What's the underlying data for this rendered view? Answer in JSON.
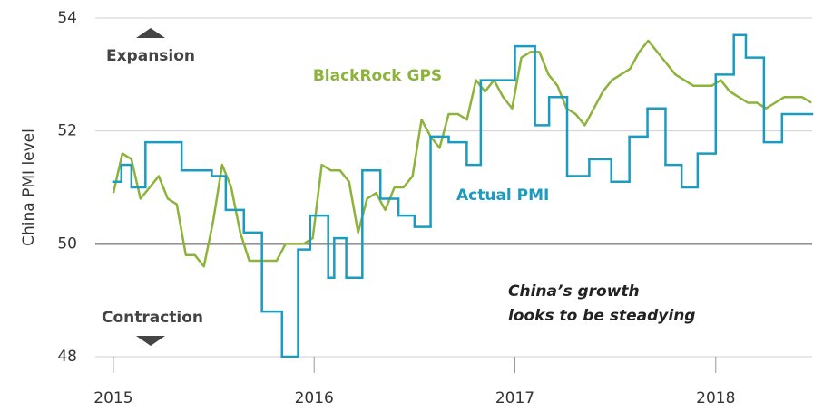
{
  "chart_data": {
    "type": "line",
    "y_label": "China PMI level",
    "ylim": [
      48,
      54
    ],
    "yticks": [
      48,
      50,
      52,
      54
    ],
    "xlim": [
      2014.91,
      2018.48
    ],
    "xticks": [
      2015,
      2016,
      2017,
      2018
    ],
    "hline": 50,
    "upper_label": "Expansion",
    "lower_label": "Contraction",
    "annotation": [
      "China’s growth",
      "looks to be steadying"
    ],
    "grid": true,
    "series": [
      {
        "name": "BlackRock GPS",
        "color": "#8db33a",
        "style": "line",
        "x": [
          2015.0,
          2015.045,
          2015.09,
          2015.135,
          2015.181,
          2015.226,
          2015.271,
          2015.316,
          2015.361,
          2015.406,
          2015.451,
          2015.497,
          2015.542,
          2015.587,
          2015.632,
          2015.677,
          2015.722,
          2015.767,
          2015.813,
          2015.858,
          2015.903,
          2015.948,
          2015.993,
          2016.038,
          2016.084,
          2016.129,
          2016.174,
          2016.219,
          2016.264,
          2016.309,
          2016.354,
          2016.4,
          2016.445,
          2016.49,
          2016.535,
          2016.58,
          2016.625,
          2016.67,
          2016.716,
          2016.761,
          2016.806,
          2016.851,
          2016.896,
          2016.941,
          2016.986,
          2017.032,
          2017.077,
          2017.122,
          2017.167,
          2017.212,
          2017.257,
          2017.302,
          2017.348,
          2017.393,
          2017.438,
          2017.483,
          2017.528,
          2017.573,
          2017.619,
          2017.664,
          2017.709,
          2017.754,
          2017.799,
          2017.844,
          2017.889,
          2017.935,
          2017.98,
          2018.025,
          2018.07,
          2018.115,
          2018.16,
          2018.205,
          2018.251,
          2018.296,
          2018.341,
          2018.386,
          2018.431,
          2018.476
        ],
        "values": [
          50.9,
          51.6,
          51.5,
          50.8,
          51.0,
          51.2,
          50.8,
          50.7,
          49.8,
          49.8,
          49.6,
          50.4,
          51.4,
          51.0,
          50.2,
          49.7,
          49.7,
          49.7,
          49.7,
          50.0,
          50.0,
          50.0,
          50.1,
          51.4,
          51.3,
          51.3,
          51.1,
          50.2,
          50.8,
          50.9,
          50.6,
          51.0,
          51.0,
          51.2,
          52.2,
          51.9,
          51.7,
          52.3,
          52.3,
          52.2,
          52.9,
          52.7,
          52.9,
          52.6,
          52.4,
          53.3,
          53.4,
          53.4,
          53.0,
          52.8,
          52.4,
          52.3,
          52.1,
          52.4,
          52.7,
          52.9,
          53.0,
          53.1,
          53.4,
          53.6,
          53.4,
          53.2,
          53.0,
          52.9,
          52.8,
          52.8,
          52.8,
          52.9,
          52.7,
          52.6,
          52.5,
          52.5,
          52.4,
          52.5,
          52.6,
          52.6,
          52.6,
          52.5
        ]
      },
      {
        "name": "Actual PMI",
        "color": "#1b9bbf",
        "style": "step",
        "x": [
          2015.0,
          2015.04,
          2015.09,
          2015.16,
          2015.34,
          2015.49,
          2015.56,
          2015.65,
          2015.74,
          2015.84,
          2015.92,
          2015.98,
          2016.07,
          2016.1,
          2016.16,
          2016.24,
          2016.33,
          2016.42,
          2016.5,
          2016.58,
          2016.67,
          2016.76,
          2016.83,
          2017.0,
          2017.1,
          2017.17,
          2017.26,
          2017.37,
          2017.48,
          2017.57,
          2017.66,
          2017.75,
          2017.83,
          2017.91,
          2018.0,
          2018.09,
          2018.15,
          2018.24,
          2018.33
        ],
        "values": [
          51.1,
          51.4,
          51.0,
          51.8,
          51.3,
          51.2,
          50.6,
          50.2,
          48.8,
          48.0,
          49.9,
          50.5,
          49.4,
          50.1,
          49.4,
          51.3,
          50.8,
          50.5,
          50.3,
          51.9,
          51.8,
          51.4,
          52.9,
          53.5,
          52.1,
          52.6,
          51.2,
          51.5,
          51.1,
          51.9,
          52.4,
          51.4,
          51.0,
          51.6,
          53.0,
          53.7,
          53.3,
          51.8,
          52.3
        ]
      }
    ]
  }
}
